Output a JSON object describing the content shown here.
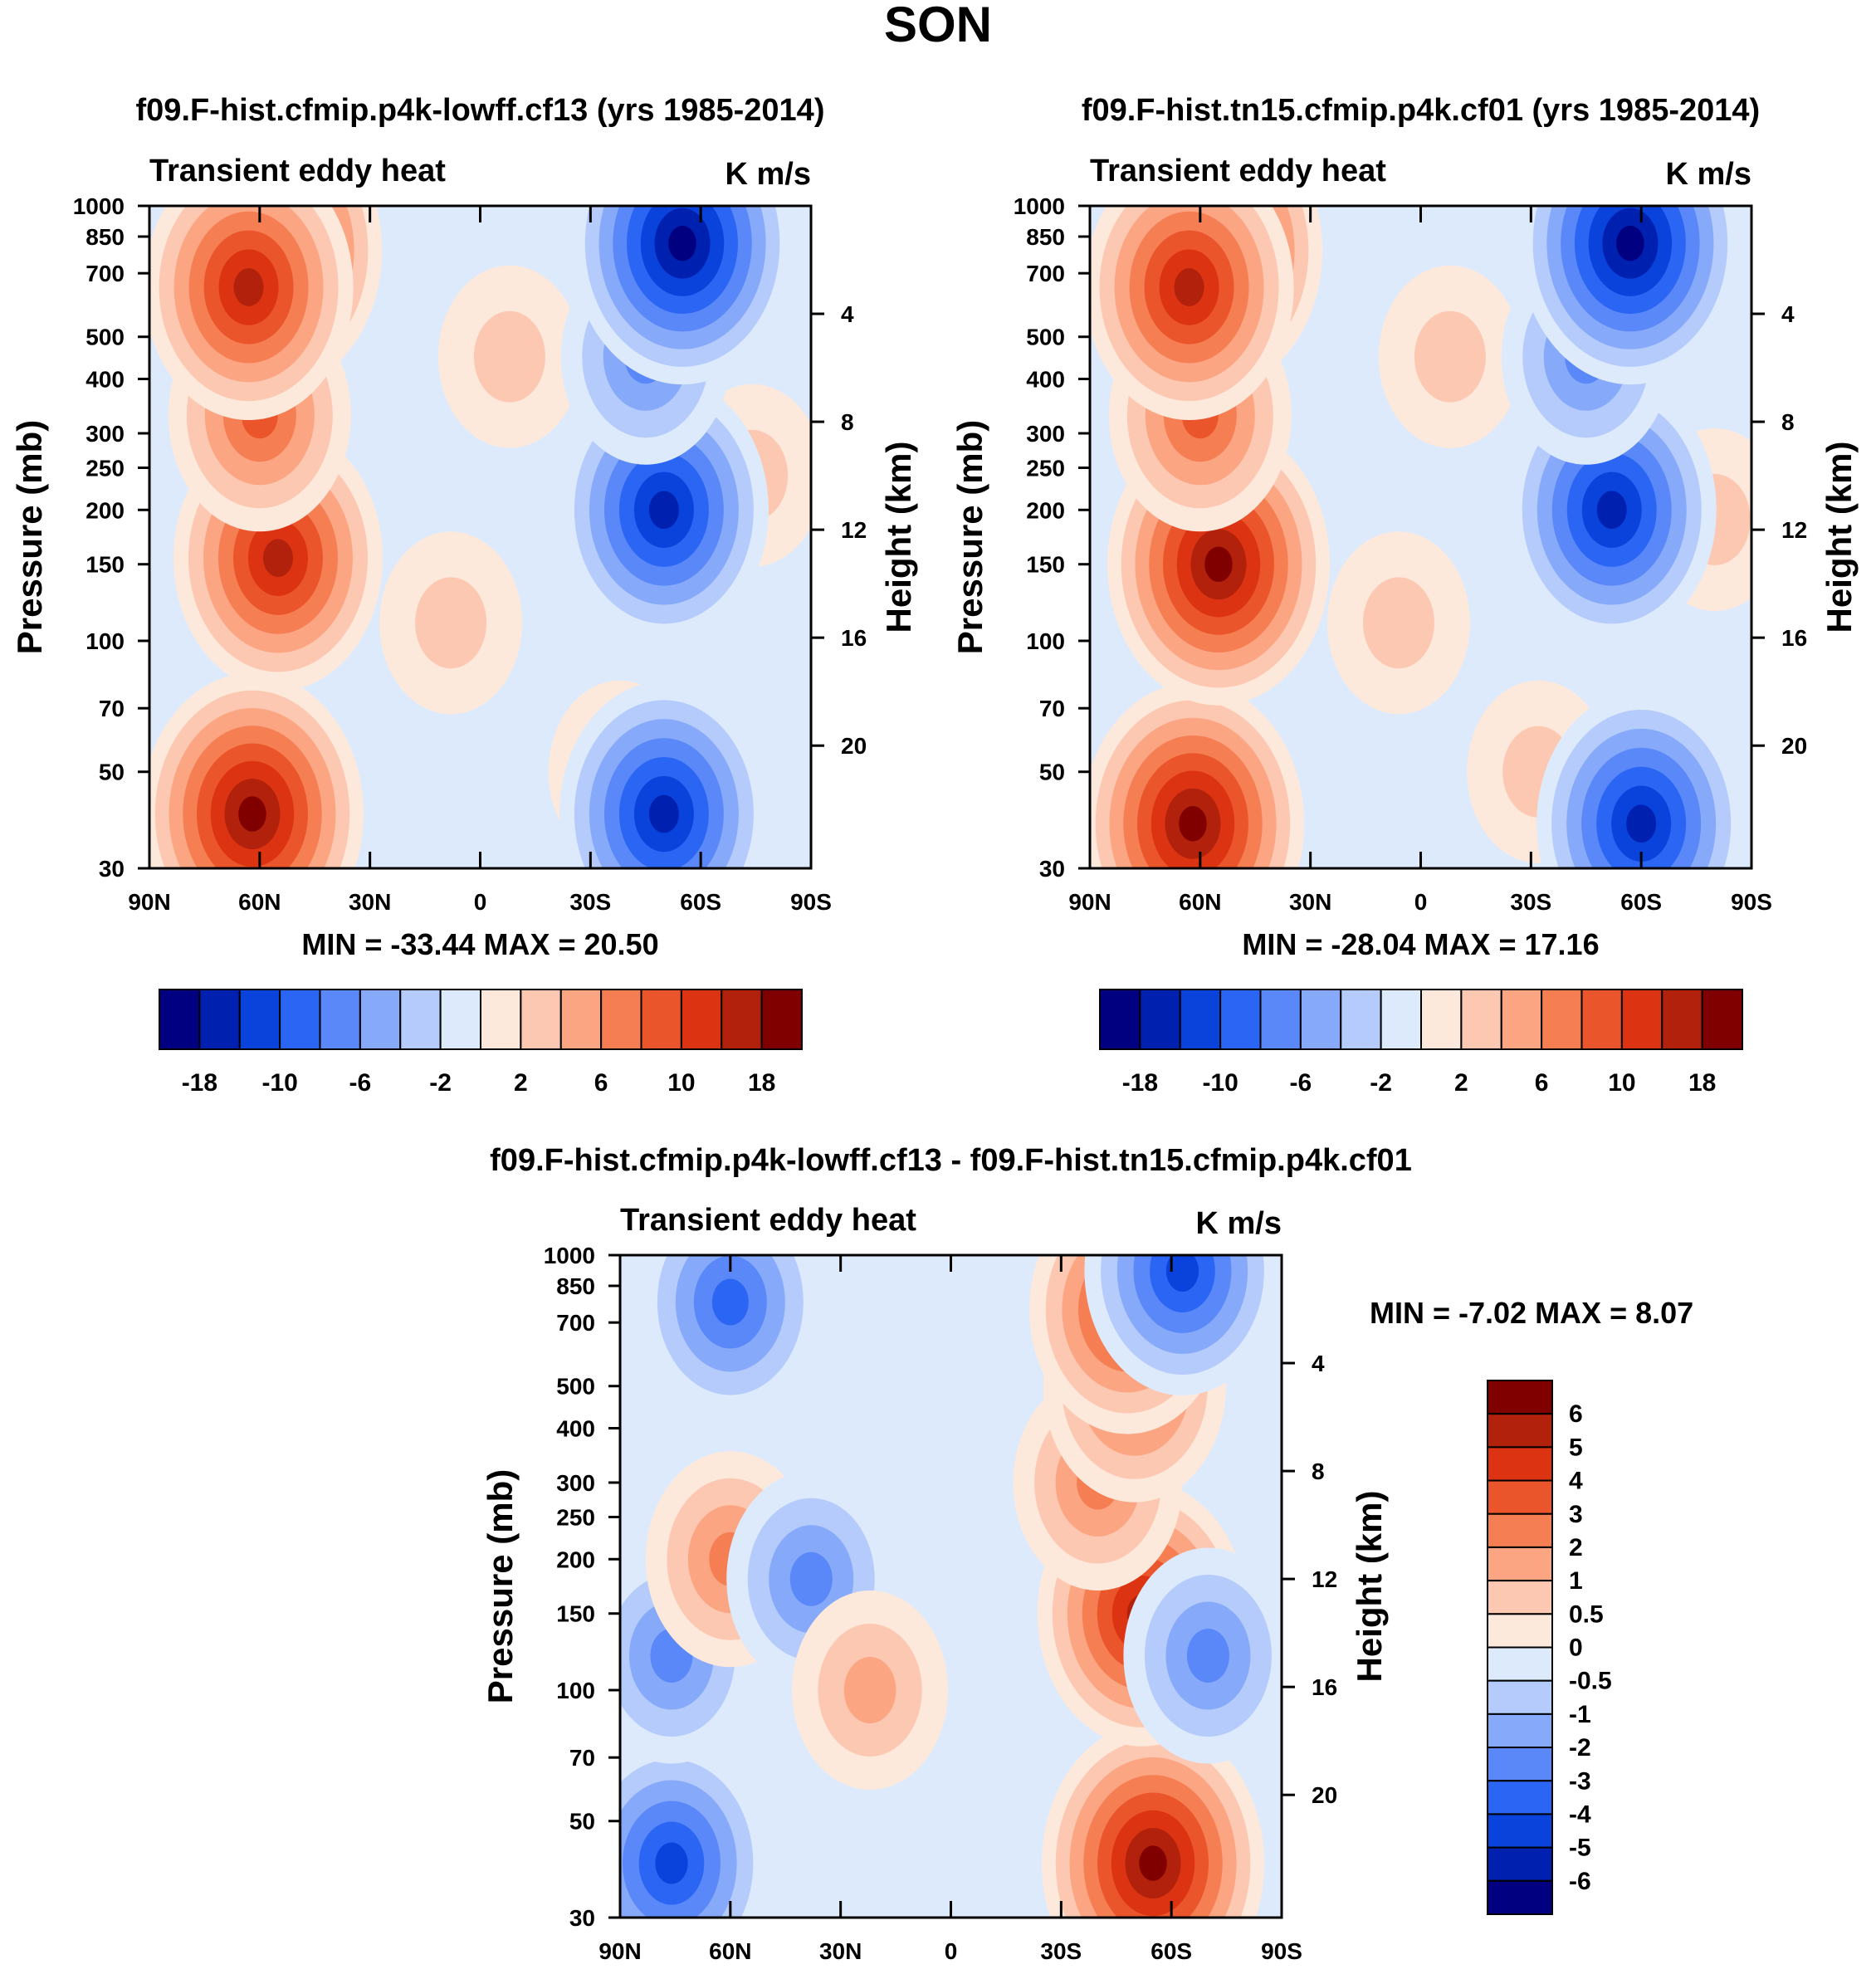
{
  "figure": {
    "title": "SON"
  },
  "chart_data": [
    {
      "type": "heatmap",
      "title": "f09.F-hist.cfmip.p4k-lowff.cf13 (yrs 1985-2014)",
      "left_string": "Transient eddy heat",
      "right_string": "K m/s",
      "xlabel": "",
      "ylabel": "Pressure (mb)",
      "y2label": "Height (km)",
      "xticks": [
        "90N",
        "60N",
        "30N",
        "0",
        "30S",
        "60S",
        "90S"
      ],
      "yticks": [
        30,
        50,
        70,
        100,
        150,
        200,
        250,
        300,
        400,
        500,
        700,
        850,
        1000
      ],
      "y2ticks": [
        4,
        8,
        12,
        16,
        20
      ],
      "x_range": [
        90,
        -90
      ],
      "y_range_mb": [
        1000,
        30
      ],
      "y_scale": "log",
      "min_label": "MIN = -33.44  MAX =  20.50",
      "min": -33.44,
      "max": 20.5,
      "colorbar": {
        "orientation": "horizontal",
        "labels": [
          "-18",
          "-10",
          "-6",
          "-2",
          "2",
          "6",
          "10",
          "18"
        ],
        "colors": [
          "#000080",
          "#0021b0",
          "#0a43db",
          "#2a66f3",
          "#5a88f8",
          "#86aaf9",
          "#b4cbfb",
          "#ddeafc",
          "#fde9dc",
          "#fdc8b1",
          "#fba583",
          "#f57e53",
          "#eb552c",
          "#dc3412",
          "#b2210b",
          "#800000"
        ]
      },
      "features": [
        {
          "lat": 62,
          "p": 40,
          "v": 14
        },
        {
          "lat": 55,
          "p": 155,
          "v": 12
        },
        {
          "lat": 60,
          "p": 330,
          "v": 4
        },
        {
          "lat": 57,
          "p": 790,
          "v": 14
        },
        {
          "lat": 63,
          "p": 650,
          "v": 10
        },
        {
          "lat": 8,
          "p": 110,
          "v": 1
        },
        {
          "lat": -8,
          "p": 450,
          "v": 1
        },
        {
          "lat": -38,
          "p": 50,
          "v": 1
        },
        {
          "lat": -74,
          "p": 240,
          "v": 1
        },
        {
          "lat": -50,
          "p": 40,
          "v": -14
        },
        {
          "lat": -50,
          "p": 200,
          "v": -14
        },
        {
          "lat": -45,
          "p": 450,
          "v": -4
        },
        {
          "lat": -55,
          "p": 820,
          "v": -26
        }
      ]
    },
    {
      "type": "heatmap",
      "title": "f09.F-hist.tn15.cfmip.p4k.cf01 (yrs 1985-2014)",
      "left_string": "Transient eddy heat",
      "right_string": "K m/s",
      "xlabel": "",
      "ylabel": "Pressure (mb)",
      "y2label": "Height (km)",
      "xticks": [
        "90N",
        "60N",
        "30N",
        "0",
        "30S",
        "60S",
        "90S"
      ],
      "yticks": [
        30,
        50,
        70,
        100,
        150,
        200,
        250,
        300,
        400,
        500,
        700,
        850,
        1000
      ],
      "y2ticks": [
        4,
        8,
        12,
        16,
        20
      ],
      "x_range": [
        90,
        -90
      ],
      "y_range_mb": [
        1000,
        30
      ],
      "y_scale": "log",
      "min_label": "MIN = -28.04  MAX =  17.16",
      "min": -28.04,
      "max": 17.16,
      "colorbar": {
        "orientation": "horizontal",
        "labels": [
          "-18",
          "-10",
          "-6",
          "-2",
          "2",
          "6",
          "10",
          "18"
        ],
        "colors": [
          "#000080",
          "#0021b0",
          "#0a43db",
          "#2a66f3",
          "#5a88f8",
          "#86aaf9",
          "#b4cbfb",
          "#ddeafc",
          "#fde9dc",
          "#fdc8b1",
          "#fba583",
          "#f57e53",
          "#eb552c",
          "#dc3412",
          "#b2210b",
          "#800000"
        ]
      },
      "features": [
        {
          "lat": 62,
          "p": 38,
          "v": 16
        },
        {
          "lat": 55,
          "p": 150,
          "v": 12
        },
        {
          "lat": 60,
          "p": 330,
          "v": 4
        },
        {
          "lat": 57,
          "p": 790,
          "v": 14
        },
        {
          "lat": 63,
          "p": 650,
          "v": 10
        },
        {
          "lat": 6,
          "p": 110,
          "v": 1
        },
        {
          "lat": -8,
          "p": 450,
          "v": 1
        },
        {
          "lat": -32,
          "p": 50,
          "v": 1
        },
        {
          "lat": -80,
          "p": 190,
          "v": 1
        },
        {
          "lat": -60,
          "p": 38,
          "v": -18
        },
        {
          "lat": -52,
          "p": 200,
          "v": -14
        },
        {
          "lat": -45,
          "p": 450,
          "v": -4
        },
        {
          "lat": -57,
          "p": 820,
          "v": -22
        }
      ]
    },
    {
      "type": "heatmap",
      "title": "f09.F-hist.cfmip.p4k-lowff.cf13 - f09.F-hist.tn15.cfmip.p4k.cf01",
      "left_string": "Transient eddy heat",
      "right_string": "K m/s",
      "xlabel": "",
      "ylabel": "Pressure (mb)",
      "y2label": "Height (km)",
      "xticks": [
        "90N",
        "60N",
        "30N",
        "0",
        "30S",
        "60S",
        "90S"
      ],
      "yticks": [
        30,
        50,
        70,
        100,
        150,
        200,
        250,
        300,
        400,
        500,
        700,
        850,
        1000
      ],
      "y2ticks": [
        4,
        8,
        12,
        16,
        20
      ],
      "x_range": [
        90,
        -90
      ],
      "y_range_mb": [
        1000,
        30
      ],
      "y_scale": "log",
      "min_label": "MIN =  -7.02  MAX =   8.07",
      "min": -7.02,
      "max": 8.07,
      "colorbar": {
        "orientation": "vertical",
        "labels": [
          "6",
          "5",
          "4",
          "3",
          "2",
          "1",
          "0.5",
          "0",
          "-0.5",
          "-1",
          "-2",
          "-3",
          "-4",
          "-5",
          "-6"
        ],
        "colors": [
          "#800000",
          "#b2210b",
          "#dc3412",
          "#eb552c",
          "#f57e53",
          "#fba583",
          "#fdc8b1",
          "#fde9dc",
          "#ddeafc",
          "#b4cbfb",
          "#86aaf9",
          "#5a88f8",
          "#2a66f3",
          "#0a43db",
          "#0021b0",
          "#000080"
        ]
      },
      "features": [
        {
          "lat": 76,
          "p": 40,
          "v": -3
        },
        {
          "lat": 76,
          "p": 120,
          "v": -1.4
        },
        {
          "lat": 60,
          "p": 200,
          "v": 1.4
        },
        {
          "lat": 38,
          "p": 180,
          "v": -1.5
        },
        {
          "lat": 60,
          "p": 780,
          "v": -2.6
        },
        {
          "lat": 22,
          "p": 100,
          "v": 1.2
        },
        {
          "lat": -55,
          "p": 40,
          "v": 7
        },
        {
          "lat": -52,
          "p": 150,
          "v": 5
        },
        {
          "lat": -40,
          "p": 300,
          "v": 2
        },
        {
          "lat": -50,
          "p": 500,
          "v": 2.5
        },
        {
          "lat": -48,
          "p": 750,
          "v": 3
        },
        {
          "lat": -70,
          "p": 120,
          "v": -1.2
        },
        {
          "lat": -63,
          "p": 920,
          "v": -3.5
        }
      ]
    }
  ]
}
